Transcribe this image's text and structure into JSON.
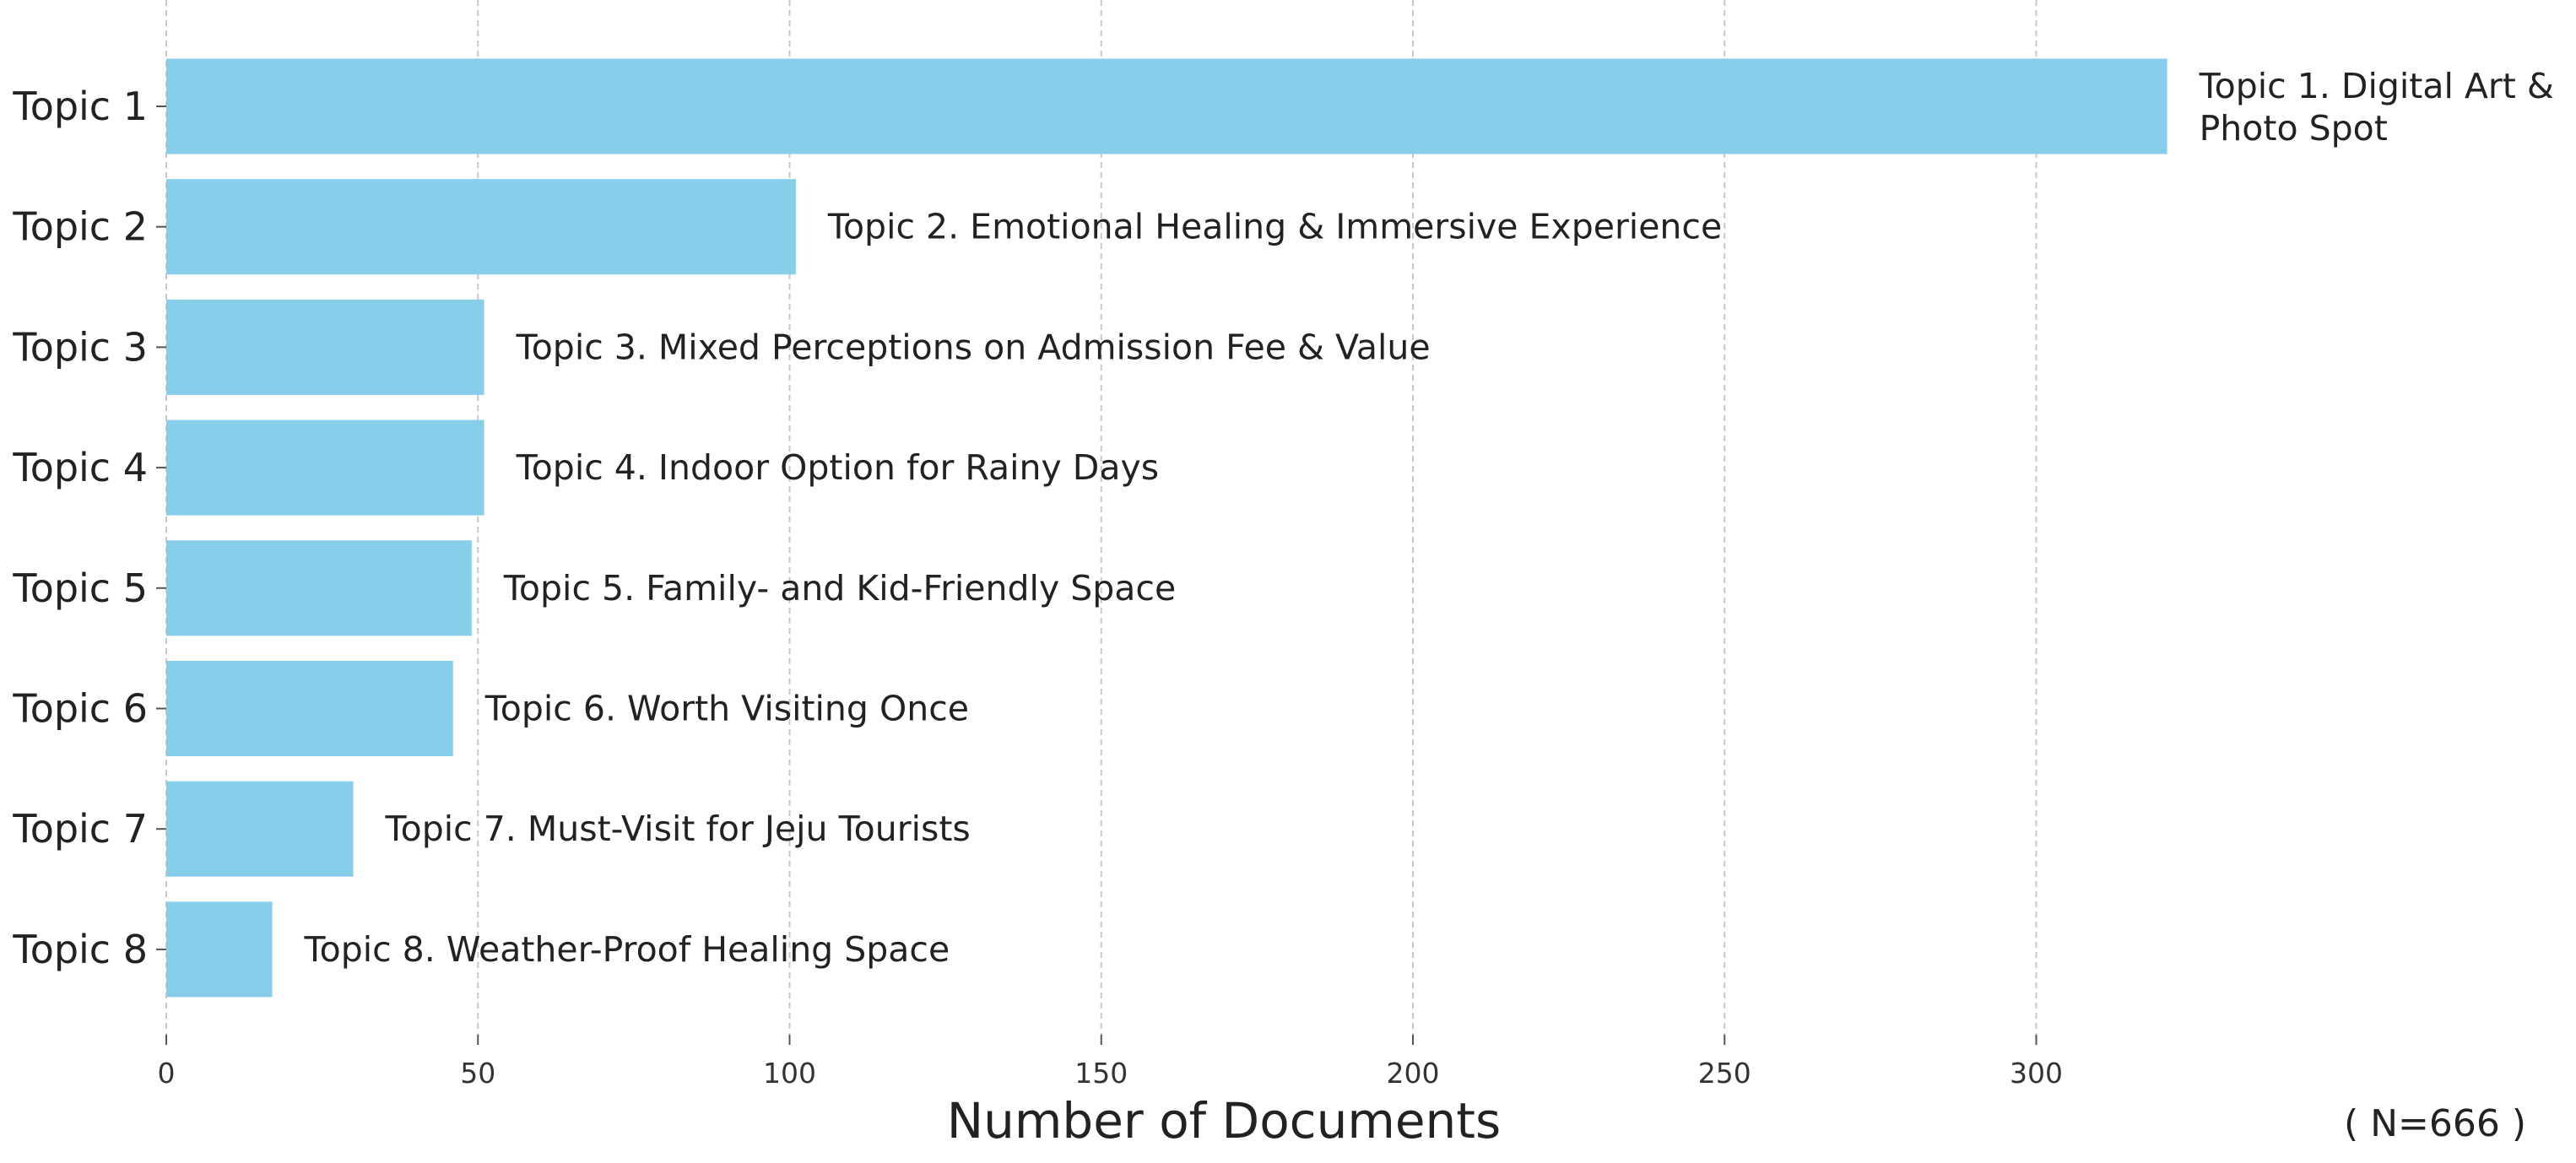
{
  "chart_data": {
    "type": "bar",
    "orientation": "horizontal",
    "categories": [
      "Topic 1",
      "Topic 2",
      "Topic 3",
      "Topic 4",
      "Topic 5",
      "Topic 6",
      "Topic 7",
      "Topic 8"
    ],
    "values": [
      321,
      101,
      51,
      51,
      49,
      46,
      30,
      17
    ],
    "bar_labels": [
      [
        "Topic 1. Digital Art &",
        "Photo Spot"
      ],
      [
        "Topic 2. Emotional Healing & Immersive Experience"
      ],
      [
        "Topic 3. Mixed Perceptions on Admission Fee & Value"
      ],
      [
        "Topic 4. Indoor Option for Rainy Days"
      ],
      [
        "Topic 5. Family- and Kid-Friendly Space"
      ],
      [
        "Topic 6. Worth Visiting Once"
      ],
      [
        "Topic 7. Must-Visit for Jeju Tourists"
      ],
      [
        "Topic 8. Weather-Proof Healing Space"
      ]
    ],
    "xlabel": "Number of Documents",
    "ylabel": "",
    "annotation": "( N=666 )",
    "xticks": [
      0,
      50,
      100,
      150,
      200,
      250,
      300
    ],
    "xlim": [
      0,
      321
    ],
    "grid": "vertical dashed",
    "bar_color": "#87CEEB"
  }
}
